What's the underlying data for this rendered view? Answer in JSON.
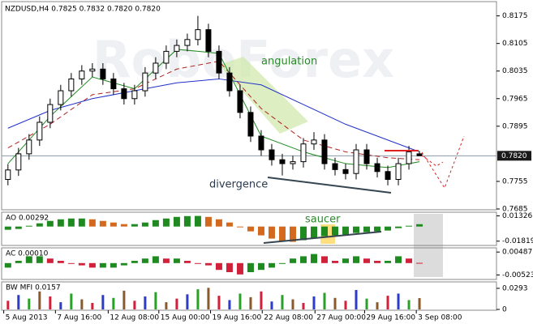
{
  "chart_data": {
    "type": "candlestick",
    "header": "NZDUSD,H4  0.7825 0.7832 0.7820 0.7820",
    "watermark": "RoboForex",
    "annotations": [
      "angulation",
      "divergence",
      "saucer"
    ],
    "ohlc": [
      [
        0.776,
        0.7799,
        0.7745,
        0.7784
      ],
      [
        0.7784,
        0.784,
        0.7769,
        0.7825
      ],
      [
        0.7825,
        0.7875,
        0.781,
        0.786
      ],
      [
        0.786,
        0.792,
        0.7845,
        0.7905
      ],
      [
        0.7905,
        0.7965,
        0.789,
        0.795
      ],
      [
        0.795,
        0.8,
        0.7935,
        0.7985
      ],
      [
        0.7985,
        0.803,
        0.797,
        0.8015
      ],
      [
        0.8015,
        0.805,
        0.8,
        0.8035
      ],
      [
        0.8035,
        0.8055,
        0.802,
        0.804
      ],
      [
        0.804,
        0.8055,
        0.8,
        0.8015
      ],
      [
        0.8015,
        0.803,
        0.7975,
        0.799
      ],
      [
        0.799,
        0.8005,
        0.795,
        0.7965
      ],
      [
        0.7965,
        0.8,
        0.795,
        0.7985
      ],
      [
        0.7985,
        0.8045,
        0.797,
        0.803
      ],
      [
        0.803,
        0.807,
        0.8015,
        0.8055
      ],
      [
        0.8055,
        0.81,
        0.804,
        0.8085
      ],
      [
        0.8085,
        0.8115,
        0.807,
        0.81
      ],
      [
        0.81,
        0.813,
        0.8085,
        0.8115
      ],
      [
        0.8115,
        0.8175,
        0.81,
        0.814
      ],
      [
        0.814,
        0.8155,
        0.807,
        0.8085
      ],
      [
        0.8085,
        0.81,
        0.8015,
        0.803
      ],
      [
        0.803,
        0.8045,
        0.797,
        0.7985
      ],
      [
        0.7985,
        0.8,
        0.7915,
        0.793
      ],
      [
        0.793,
        0.7945,
        0.7855,
        0.787
      ],
      [
        0.787,
        0.7885,
        0.782,
        0.7835
      ],
      [
        0.7835,
        0.785,
        0.7795,
        0.781
      ],
      [
        0.781,
        0.7825,
        0.777,
        0.78
      ],
      [
        0.78,
        0.782,
        0.7785,
        0.7805
      ],
      [
        0.7805,
        0.7865,
        0.779,
        0.785
      ],
      [
        0.785,
        0.788,
        0.7835,
        0.786
      ],
      [
        0.786,
        0.7875,
        0.7785,
        0.78
      ],
      [
        0.78,
        0.7815,
        0.777,
        0.7785
      ],
      [
        0.7785,
        0.78,
        0.776,
        0.7775
      ],
      [
        0.7775,
        0.785,
        0.776,
        0.7835
      ],
      [
        0.7835,
        0.785,
        0.7785,
        0.78
      ],
      [
        0.78,
        0.7815,
        0.7765,
        0.778
      ],
      [
        0.778,
        0.7795,
        0.7745,
        0.776
      ],
      [
        0.776,
        0.7815,
        0.7745,
        0.78
      ],
      [
        0.78,
        0.7845,
        0.7785,
        0.783
      ],
      [
        0.7825,
        0.7832,
        0.782,
        0.782
      ]
    ],
    "lines": [
      {
        "color": "#2030c8",
        "dashed": false,
        "x": [
          0,
          4,
          8,
          12,
          16,
          20,
          24,
          28,
          32,
          36,
          39
        ],
        "values": [
          0.789,
          0.7935,
          0.7965,
          0.7985,
          0.8005,
          0.8015,
          0.8,
          0.795,
          0.79,
          0.786,
          0.783
        ]
      },
      {
        "color": "#b02020",
        "dashed": true,
        "x": [
          0,
          4,
          8,
          12,
          16,
          20,
          24,
          28,
          32,
          36,
          39
        ],
        "values": [
          0.784,
          0.79,
          0.7975,
          0.799,
          0.804,
          0.806,
          0.794,
          0.786,
          0.783,
          0.7815,
          0.781
        ]
      },
      {
        "color": "#208a20",
        "dashed": false,
        "x": [
          0,
          4,
          8,
          12,
          16,
          20,
          24,
          28,
          32,
          36,
          39
        ],
        "values": [
          0.78,
          0.792,
          0.802,
          0.799,
          0.809,
          0.808,
          0.787,
          0.783,
          0.78,
          0.779,
          0.7805
        ]
      }
    ],
    "ylim": [
      0.7685,
      0.8205
    ],
    "yticks": [
      0.8175,
      0.8105,
      0.8035,
      0.7965,
      0.7895,
      0.7755,
      0.7685
    ],
    "current": {
      "value": 0.782,
      "label": "0.7820"
    },
    "xlim": [
      -0.6,
      46.3
    ],
    "xticks": [
      {
        "value": -0.4,
        "label": "5 Aug 2013"
      },
      {
        "value": 4.5,
        "label": "7 Aug 16:00"
      },
      {
        "value": 9.5,
        "label": "12 Aug 08:00"
      },
      {
        "value": 14.3,
        "label": "15 Aug 00:00"
      },
      {
        "value": 19.2,
        "label": "19 Aug 16:00"
      },
      {
        "value": 24.1,
        "label": "22 Aug 08:00"
      },
      {
        "value": 29.1,
        "label": "27 Aug 00:00"
      },
      {
        "value": 33.8,
        "label": "29 Aug 16:00"
      },
      {
        "value": 38.7,
        "label": "3 Sep 08:00"
      }
    ],
    "panels": [
      {
        "type": "histogram",
        "label": "AO 0.00292",
        "ylim": [
          -0.0215,
          0.0158
        ],
        "yticks": [
          0.01326,
          -0.01819
        ],
        "values": [
          -0.004,
          -0.003,
          0.001,
          0.004,
          0.007,
          0.009,
          0.01,
          0.01,
          0.009,
          0.007,
          0.005,
          0.003,
          0.003,
          0.005,
          0.008,
          0.01,
          0.012,
          0.013,
          0.0132,
          0.012,
          0.009,
          0.005,
          0.0,
          -0.006,
          -0.011,
          -0.015,
          -0.018,
          -0.019,
          -0.017,
          -0.014,
          -0.012,
          -0.011,
          -0.01,
          -0.008,
          -0.007,
          -0.006,
          -0.005,
          -0.002,
          0.001,
          0.00292
        ]
      },
      {
        "type": "histogram",
        "label": "AC 0.00010",
        "ylim": [
          -0.0065,
          0.006
        ],
        "yticks": [
          0.00487,
          -0.00523
        ],
        "values": [
          -0.002,
          0.001,
          0.003,
          0.003,
          0.002,
          0.001,
          0.0,
          -0.001,
          -0.002,
          -0.002,
          -0.002,
          -0.001,
          0.001,
          0.002,
          0.003,
          0.002,
          0.002,
          0.001,
          0.0,
          -0.001,
          -0.003,
          -0.004,
          -0.005,
          -0.004,
          -0.003,
          -0.002,
          0.0,
          0.002,
          0.003,
          0.004,
          0.003,
          0.001,
          0.002,
          0.003,
          0.002,
          0.001,
          0.001,
          0.003,
          0.002,
          0.0001
        ]
      },
      {
        "type": "mfi",
        "label": "BW MFI 0.0157",
        "ylim": [
          0,
          0.036
        ],
        "yticks": [
          0.0293,
          0
        ],
        "colors": [
          "#d0203a",
          "#2a3cc8",
          "#2aa02a",
          "#8b5a2b"
        ],
        "values": [
          0.012,
          0.02,
          0.015,
          0.025,
          0.018,
          0.01,
          0.022,
          0.014,
          0.009,
          0.02,
          0.016,
          0.026,
          0.012,
          0.018,
          0.024,
          0.01,
          0.015,
          0.021,
          0.028,
          0.03,
          0.019,
          0.013,
          0.022,
          0.017,
          0.025,
          0.011,
          0.02,
          0.014,
          0.009,
          0.018,
          0.023,
          0.016,
          0.012,
          0.027,
          0.015,
          0.01,
          0.019,
          0.022,
          0.013,
          0.0157
        ]
      }
    ]
  }
}
